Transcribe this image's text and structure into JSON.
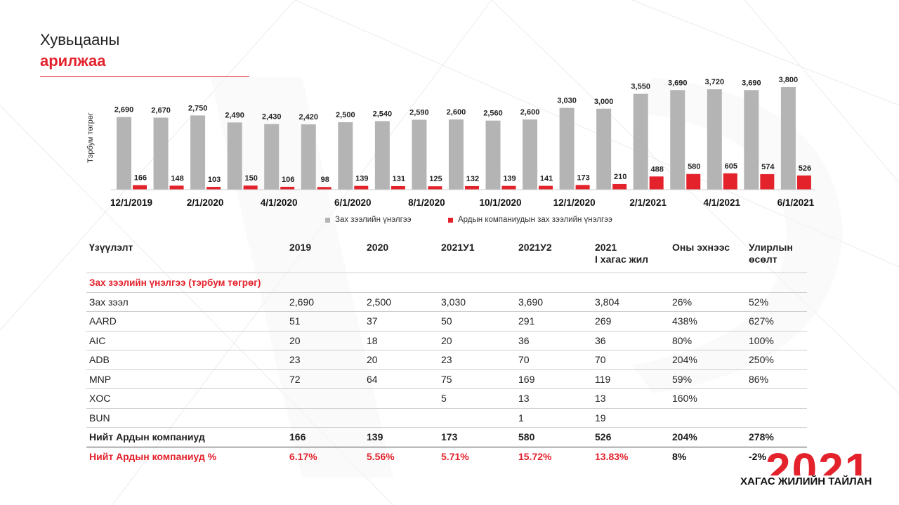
{
  "header": {
    "title_line1": "Хувьцааны",
    "title_line2": "арилжаа"
  },
  "colors": {
    "accent": "#e3222c",
    "gray_bar": "#b4b4b4"
  },
  "chart_data": {
    "type": "bar",
    "ylabel": "Тэрбум төгрөг",
    "categories": [
      "12/1/2019",
      "1/1/2020",
      "2/1/2020",
      "3/1/2020",
      "4/1/2020",
      "5/1/2020",
      "6/1/2020",
      "7/1/2020",
      "8/1/2020",
      "9/1/2020",
      "10/1/2020",
      "11/1/2020",
      "12/1/2020",
      "1/1/2021",
      "2/1/2021",
      "3/1/2021",
      "4/1/2021",
      "5/1/2021",
      "6/1/2021"
    ],
    "shown_tick_labels": [
      "12/1/2019",
      "2/1/2020",
      "4/1/2020",
      "6/1/2020",
      "8/1/2020",
      "10/1/2020",
      "12/1/2020",
      "2/1/2021",
      "4/1/2021",
      "6/1/2021"
    ],
    "series": [
      {
        "name": "Зах зээлийн үнэлгээ",
        "color": "#b4b4b4",
        "values": [
          2690,
          2670,
          2750,
          2490,
          2430,
          2420,
          2500,
          2540,
          2590,
          2600,
          2560,
          2600,
          3030,
          3000,
          3550,
          3690,
          3720,
          3690,
          3800
        ],
        "labels": [
          "2,690",
          "2,670",
          "2,750",
          "2,490",
          "2,430",
          "2,420",
          "2,500",
          "2,540",
          "2,590",
          "2,600",
          "2,560",
          "2,600",
          "3,030",
          "3,000",
          "3,550",
          "3,690",
          "3,720",
          "3,690",
          "3,800"
        ]
      },
      {
        "name": "Ардын компаниудын зах зээлийн үнэлгээ",
        "color": "#e3222c",
        "values": [
          166,
          148,
          103,
          150,
          106,
          98,
          139,
          131,
          125,
          132,
          139,
          141,
          173,
          210,
          488,
          580,
          605,
          574,
          526
        ],
        "labels": [
          "166",
          "148",
          "103",
          "150",
          "106",
          "98",
          "139",
          "131",
          "125",
          "132",
          "139",
          "141",
          "173",
          "210",
          "488",
          "580",
          "605",
          "574",
          "526"
        ]
      }
    ],
    "ylim": [
      0,
      4000
    ]
  },
  "legend": {
    "market": "Зах зээлийн үнэлгээ",
    "peoples": "Ардын компаниудын зах зээлийн үнэлгээ"
  },
  "table": {
    "headers": [
      "Үзүүлэлт",
      "2019",
      "2020",
      "2021У1",
      "2021У2",
      "2021\nI хагас жил",
      "Оны эхнээс",
      "Улирлын\nөсөлт"
    ],
    "section": "Зах зээлийн үнэлгээ (тэрбум төгрөг)",
    "rows": [
      [
        "Зах зээл",
        "2,690",
        "2,500",
        "3,030",
        "3,690",
        "3,804",
        "26%",
        "52%"
      ],
      [
        "AARD",
        "51",
        "37",
        "50",
        "291",
        "269",
        "438%",
        "627%"
      ],
      [
        "AIC",
        "20",
        "18",
        "20",
        "36",
        "36",
        "80%",
        "100%"
      ],
      [
        "ADB",
        "23",
        "20",
        "23",
        "70",
        "70",
        "204%",
        "250%"
      ],
      [
        "MNP",
        "72",
        "64",
        "75",
        "169",
        "119",
        "59%",
        " 86%"
      ],
      [
        "XOC",
        "",
        "",
        "5",
        "13",
        "13",
        "160%",
        ""
      ],
      [
        "BUN",
        "",
        "",
        "",
        "1",
        "19",
        "",
        ""
      ]
    ],
    "total": [
      "Нийт Ардын компаниуд",
      "166",
      "139",
      "173",
      "580",
      "526",
      "204%",
      "278%"
    ],
    "percent": [
      "Нийт Ардын компаниуд %",
      "6.17%",
      "5.56%",
      "5.71%",
      "15.72%",
      "13.83%",
      "8%",
      "-2%"
    ]
  },
  "logo": {
    "number": "2021",
    "text": "ХАГАС ЖИЛИЙН ТАЙЛАН"
  }
}
